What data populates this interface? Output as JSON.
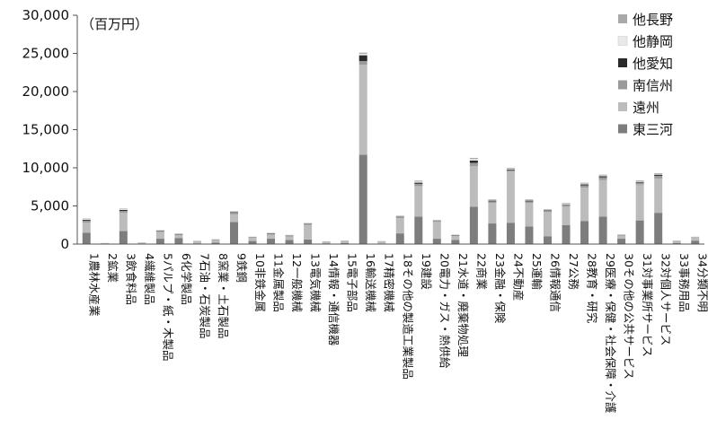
{
  "chart_data": {
    "type": "bar",
    "stacked": true,
    "title": "",
    "unit_label": "（百万円）",
    "xlabel": "",
    "ylabel": "",
    "ylim": [
      0,
      30000
    ],
    "yticks": [
      0,
      5000,
      10000,
      15000,
      20000,
      25000,
      30000
    ],
    "ytick_labels": [
      "0",
      "5,000",
      "10,000",
      "15,000",
      "20,000",
      "25,000",
      "30,000"
    ],
    "grid": false,
    "legend_position": "top-right",
    "categories": [
      "1農林水産業",
      "2鉱業",
      "3飲食料品",
      "4繊維製品",
      "5パルプ・紙・木製品",
      "6化学製品",
      "7石油・石炭製品",
      "8窯業・土石製品",
      "9鉄鋼",
      "10非鉄金属",
      "11金属製品",
      "12一般機械",
      "13電気機械",
      "14情報・通信機器",
      "15電子部品",
      "16輸送機械",
      "17精密機械",
      "18その他の製造工業製品",
      "19建設",
      "20電力・ガス・熱供給",
      "21水道・廃棄物処理",
      "22商業",
      "23金融・保険",
      "24不動産",
      "25運輸",
      "26情報通信",
      "27公務",
      "28教育・研究",
      "29医療・保健・社会保障・介護",
      "30その他の公共サービス",
      "31対事業所サービス",
      "32対個人サービス",
      "33事務用品",
      "34分類不明"
    ],
    "series": [
      {
        "name": "東三河",
        "color": "#7d7d7d",
        "values": [
          1500,
          30,
          1700,
          50,
          700,
          800,
          100,
          200,
          2900,
          400,
          700,
          550,
          600,
          100,
          150,
          11700,
          80,
          1400,
          3600,
          700,
          550,
          4900,
          2700,
          2800,
          2300,
          1000,
          2500,
          3000,
          3600,
          700,
          3100,
          4100,
          150,
          450
        ]
      },
      {
        "name": "遠州",
        "color": "#bcbcbc",
        "values": [
          1300,
          80,
          2400,
          120,
          900,
          350,
          250,
          300,
          1000,
          450,
          550,
          450,
          1900,
          200,
          250,
          11800,
          250,
          2000,
          4000,
          2200,
          500,
          5300,
          2700,
          6700,
          3100,
          3200,
          2400,
          4400,
          4800,
          400,
          4700,
          4500,
          250,
          400
        ]
      },
      {
        "name": "南信州",
        "color": "#9a9a9a",
        "values": [
          250,
          10,
          250,
          20,
          120,
          120,
          40,
          80,
          200,
          70,
          120,
          100,
          150,
          30,
          40,
          500,
          30,
          150,
          300,
          150,
          100,
          450,
          200,
          200,
          200,
          150,
          250,
          300,
          350,
          80,
          250,
          350,
          40,
          50
        ]
      },
      {
        "name": "他愛知",
        "color": "#2a2a2a",
        "values": [
          120,
          5,
          120,
          5,
          40,
          50,
          10,
          20,
          80,
          20,
          40,
          40,
          40,
          10,
          10,
          750,
          10,
          60,
          150,
          40,
          40,
          300,
          100,
          100,
          100,
          80,
          60,
          120,
          150,
          30,
          100,
          150,
          10,
          20
        ]
      },
      {
        "name": "他静岡",
        "color": "#e9e9e9",
        "values": [
          100,
          5,
          100,
          5,
          40,
          40,
          10,
          20,
          80,
          20,
          40,
          30,
          50,
          10,
          10,
          200,
          10,
          70,
          150,
          50,
          30,
          200,
          100,
          100,
          100,
          80,
          100,
          120,
          100,
          20,
          100,
          100,
          10,
          20
        ]
      },
      {
        "name": "他長野",
        "color": "#a9a9a9",
        "values": [
          80,
          5,
          80,
          5,
          40,
          40,
          10,
          20,
          60,
          20,
          40,
          30,
          40,
          10,
          10,
          150,
          10,
          60,
          120,
          40,
          30,
          150,
          80,
          100,
          80,
          70,
          80,
          100,
          100,
          20,
          100,
          100,
          10,
          20
        ]
      }
    ],
    "legend_order": [
      "他長野",
      "他静岡",
      "他愛知",
      "南信州",
      "遠州",
      "東三河"
    ]
  }
}
